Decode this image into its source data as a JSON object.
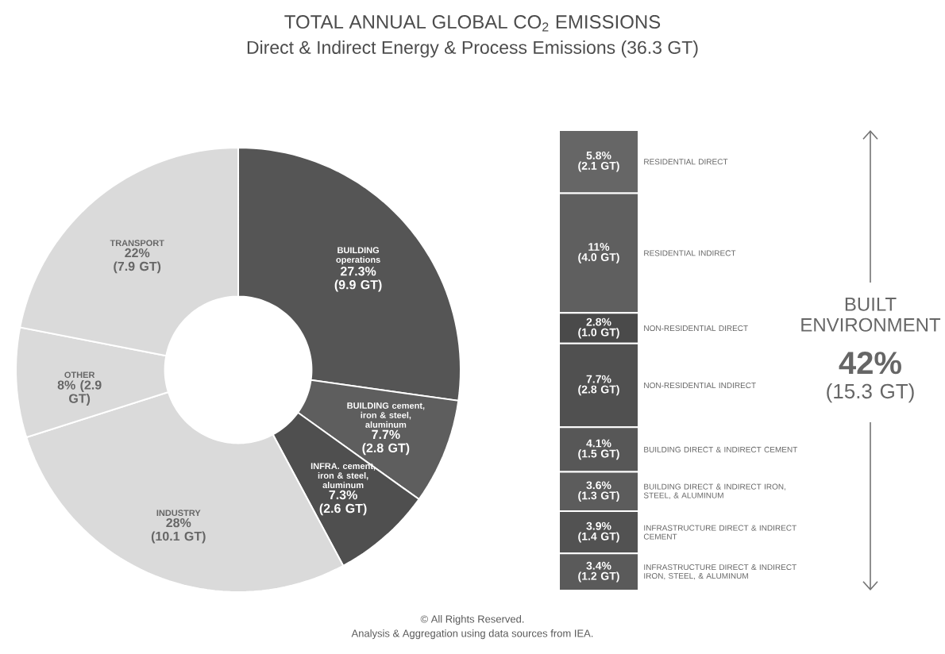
{
  "chart_data": [
    {
      "type": "donut",
      "title": "TOTAL ANNUAL GLOBAL CO$_{2}$ EMISSIONS",
      "subtitle": "Direct & Indirect Energy & Process Emissions (36.3 GT)",
      "categories": [
        "BUILDING operations",
        "BUILDING cement, iron & steel, aluminum",
        "INFRA. cement, iron & steel, aluminum",
        "INDUSTRY",
        "OTHER",
        "TRANSPORT"
      ],
      "values": [
        27.3,
        7.7,
        7.3,
        28,
        8,
        22
      ],
      "colors": [
        "#555555",
        "#5e5e5e",
        "#4f4f4f",
        "#dadada",
        "#dadada",
        "#dadada"
      ],
      "value_labels": [
        "27.3% (9.9 GT)",
        "7.7% (2.8 GT)",
        "7.3% (2.6 GT)",
        "28% (10.1 GT)",
        "8% (2.9 GT)",
        "22% (7.9 GT)"
      ],
      "annotations": [
        "© All Rights Reserved.",
        "Analysis & Aggregation using data sources from IEA."
      ]
    },
    {
      "type": "bar",
      "stacked": true,
      "categories": [
        null
      ],
      "series": [
        {
          "name": "INFRASTRUCTURE DIRECT & INDIRECT IRON, STEEL, & ALUMINUM",
          "color": "#5a5a5a",
          "values": [
            3.4
          ],
          "value_labels": [
            "3.4% (1.2 GT)"
          ]
        },
        {
          "name": "INFRASTRUCTURE DIRECT & INDIRECT CEMENT",
          "color": "#525252",
          "values": [
            3.9
          ],
          "value_labels": [
            "3.9% (1.4 GT)"
          ]
        },
        {
          "name": "BUILDING DIRECT & INDIRECT IRON, STEEL, & ALUMINUM",
          "color": "#5c5c5c",
          "values": [
            3.6
          ],
          "value_labels": [
            "3.6% (1.3 GT)"
          ]
        },
        {
          "name": "BUILDING DIRECT & INDIRECT CEMENT",
          "color": "#575757",
          "values": [
            4.1
          ],
          "value_labels": [
            "4.1% (1.5 GT)"
          ]
        },
        {
          "name": "NON-RESIDENTIAL INDIRECT",
          "color": "#505050",
          "values": [
            7.7
          ],
          "value_labels": [
            "7.7% (2.8 GT)"
          ]
        },
        {
          "name": "NON-RESIDENTIAL DIRECT",
          "color": "#4a4a4a",
          "values": [
            2.8
          ],
          "value_labels": [
            "2.8% (1.0 GT)"
          ]
        },
        {
          "name": "RESIDENTIAL INDIRECT",
          "color": "#5f5f5f",
          "values": [
            11
          ],
          "value_labels": [
            "11% (4.0 GT)"
          ]
        },
        {
          "name": "RESIDENTIAL DIRECT",
          "color": "#666666",
          "values": [
            5.8
          ],
          "value_labels": [
            "5.8% (2.1 GT)"
          ]
        }
      ],
      "annotations": [
        "BUILT ENVIRONMENT",
        "42%",
        "(15.3 GT)"
      ]
    }
  ]
}
